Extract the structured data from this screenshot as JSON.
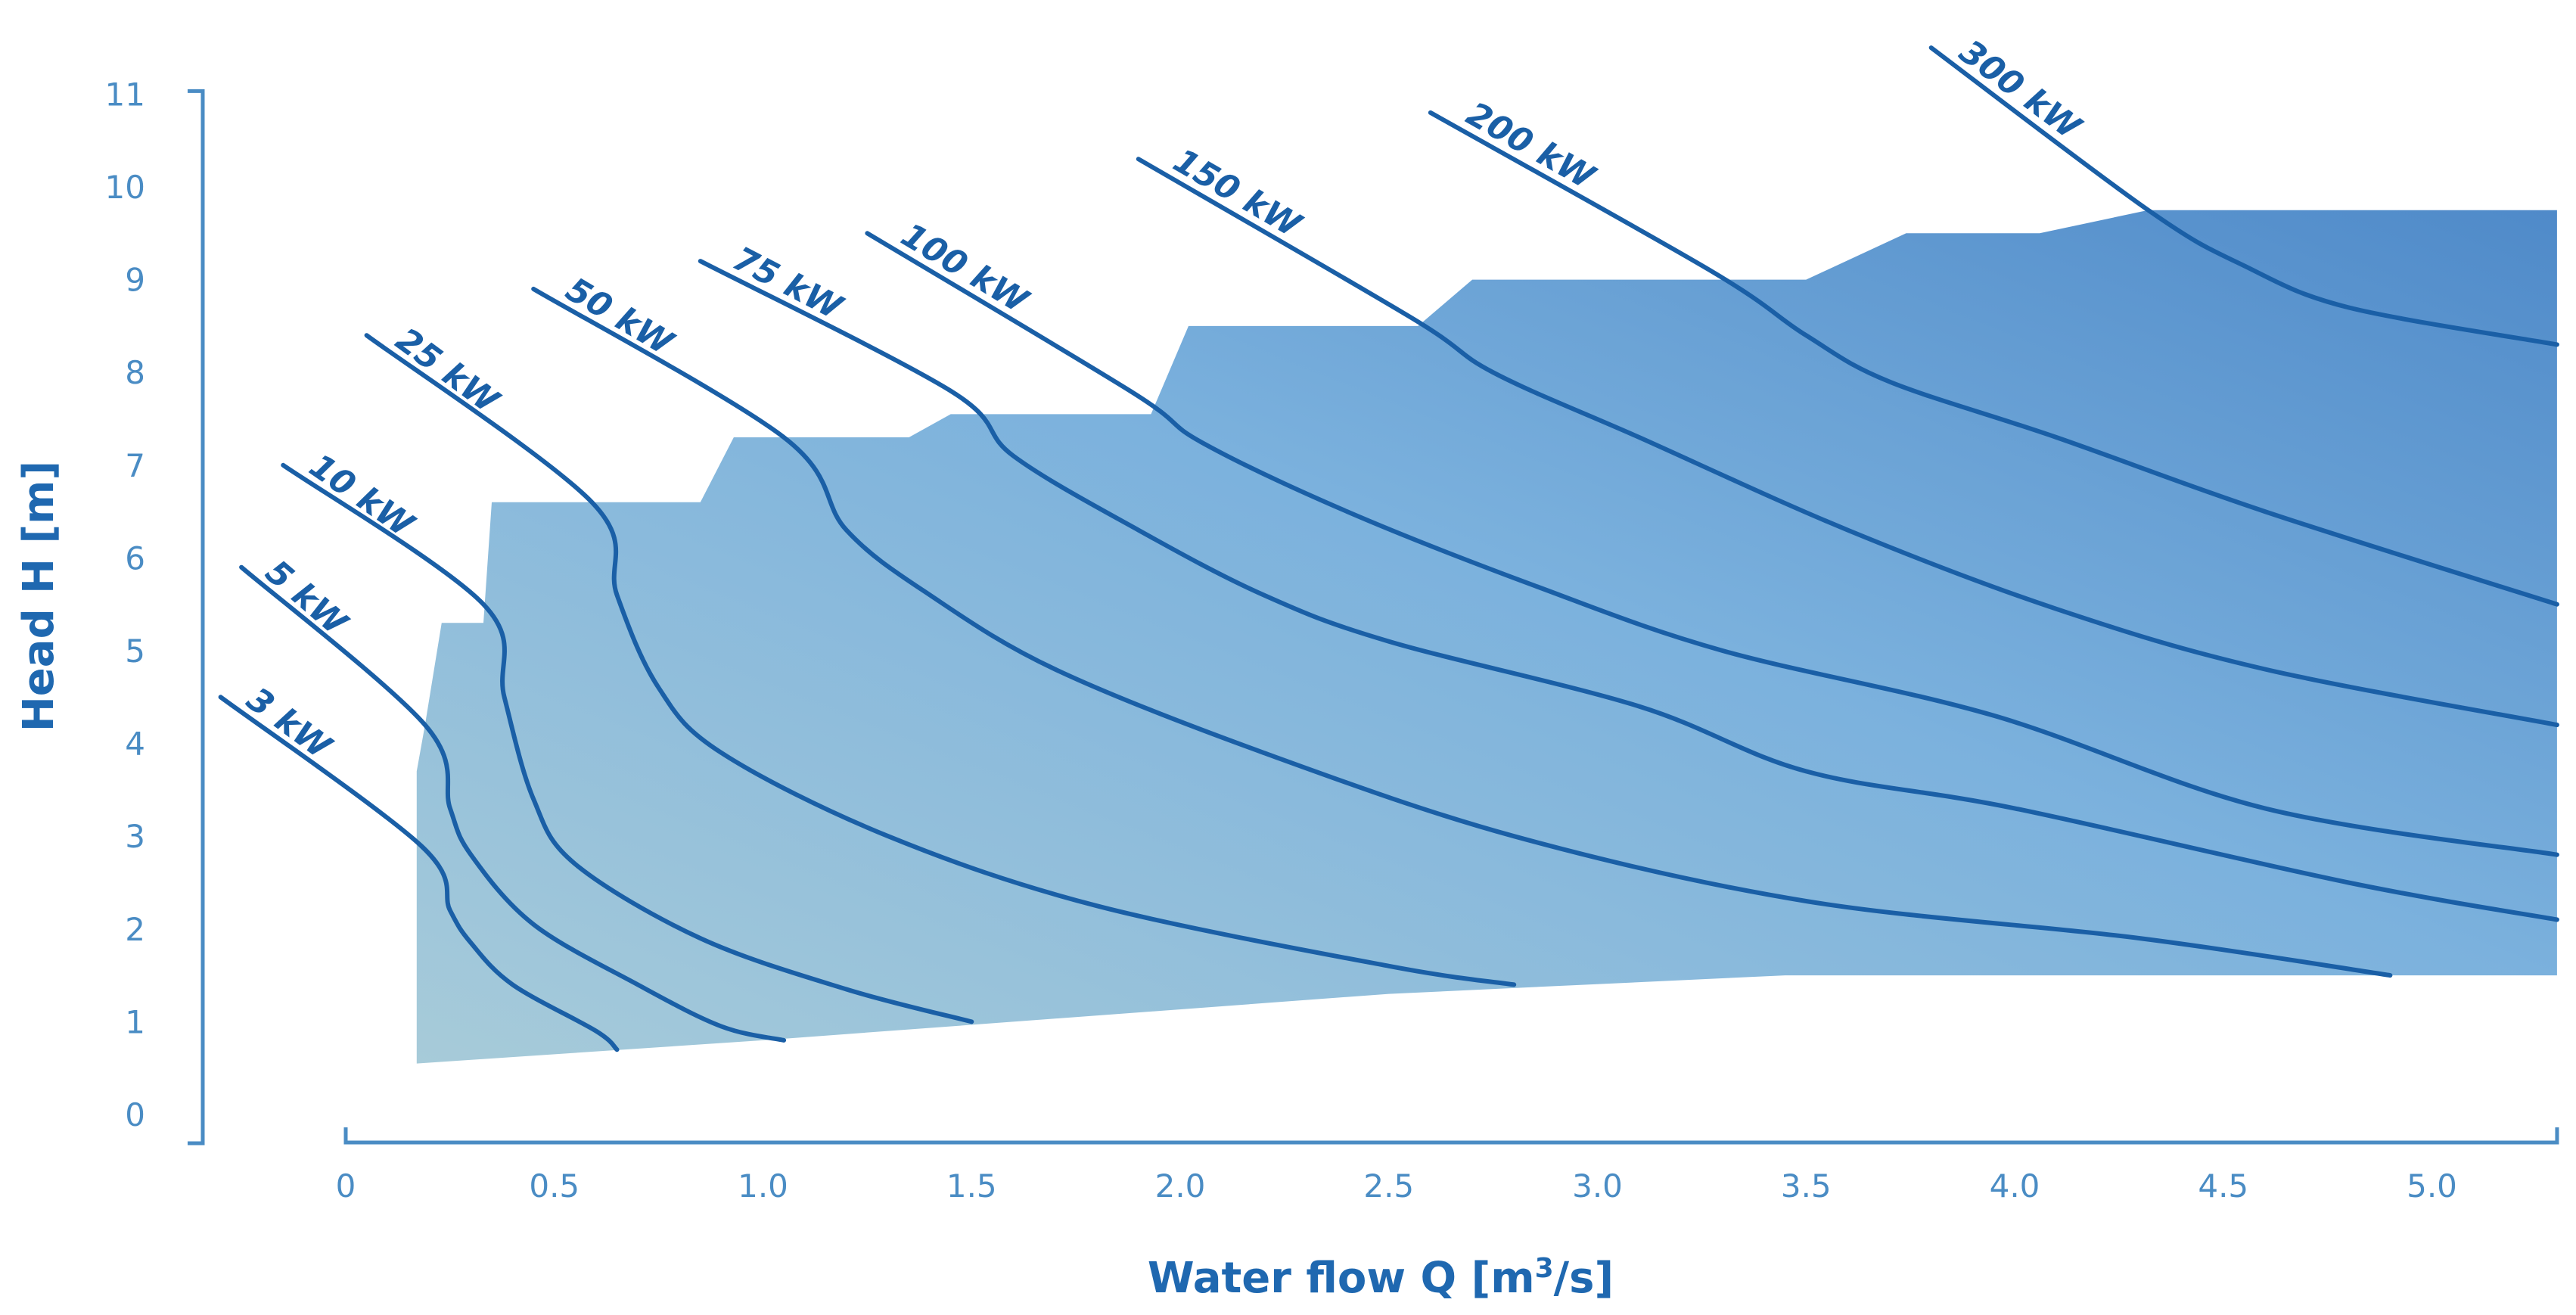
{
  "chart_data": {
    "type": "line",
    "title": "",
    "xlabel": "Water flow Q [m3/s]",
    "ylabel": "Head H [m]",
    "xlim": [
      0,
      5.3
    ],
    "ylim": [
      0,
      11
    ],
    "x_ticks": [
      {
        "value": 0,
        "label": "0"
      },
      {
        "value": 0.5,
        "label": "0.5"
      },
      {
        "value": 1.0,
        "label": "1.0"
      },
      {
        "value": 1.5,
        "label": "1.5"
      },
      {
        "value": 2.0,
        "label": "2.0"
      },
      {
        "value": 2.5,
        "label": "2.5"
      },
      {
        "value": 3.0,
        "label": "3.0"
      },
      {
        "value": 3.5,
        "label": "3.5"
      },
      {
        "value": 4.0,
        "label": "4.0"
      },
      {
        "value": 4.5,
        "label": "4.5"
      },
      {
        "value": 5.0,
        "label": "5.0"
      }
    ],
    "y_ticks": [
      {
        "value": 0,
        "label": "0"
      },
      {
        "value": 1,
        "label": "1"
      },
      {
        "value": 2,
        "label": "2"
      },
      {
        "value": 3,
        "label": "3"
      },
      {
        "value": 4,
        "label": "4"
      },
      {
        "value": 5,
        "label": "5"
      },
      {
        "value": 6,
        "label": "6"
      },
      {
        "value": 7,
        "label": "7"
      },
      {
        "value": 8,
        "label": "8"
      },
      {
        "value": 9,
        "label": "9"
      },
      {
        "value": 10,
        "label": "10"
      },
      {
        "value": 11,
        "label": "11"
      }
    ],
    "application_range": [
      [
        0.17,
        0.55
      ],
      [
        0.17,
        3.7
      ],
      [
        0.19,
        4.2
      ],
      [
        0.23,
        5.3
      ],
      [
        0.33,
        5.3
      ],
      [
        0.35,
        6.6
      ],
      [
        0.85,
        6.6
      ],
      [
        0.93,
        7.3
      ],
      [
        1.35,
        7.3
      ],
      [
        1.45,
        7.55
      ],
      [
        1.93,
        7.55
      ],
      [
        2.02,
        8.5
      ],
      [
        2.57,
        8.5
      ],
      [
        2.7,
        9.0
      ],
      [
        3.5,
        9.0
      ],
      [
        3.74,
        9.5
      ],
      [
        4.06,
        9.5
      ],
      [
        4.32,
        9.75
      ],
      [
        5.3,
        9.75
      ],
      [
        5.3,
        1.5
      ],
      [
        3.45,
        1.5
      ],
      [
        2.5,
        1.3
      ],
      [
        1.0,
        0.8
      ],
      [
        0.17,
        0.55
      ]
    ],
    "series": [
      {
        "name": "3 kW",
        "label": "3 kW",
        "points": [
          [
            -0.3,
            4.5
          ],
          [
            0.18,
            2.9
          ],
          [
            0.25,
            2.2
          ],
          [
            0.3,
            1.85
          ],
          [
            0.4,
            1.4
          ],
          [
            0.6,
            0.9
          ],
          [
            0.65,
            0.7
          ]
        ]
      },
      {
        "name": "5 kW",
        "label": "5 kW",
        "points": [
          [
            -0.25,
            5.9
          ],
          [
            0.19,
            4.2
          ],
          [
            0.25,
            3.3
          ],
          [
            0.3,
            2.8
          ],
          [
            0.45,
            2.05
          ],
          [
            0.7,
            1.4
          ],
          [
            0.9,
            0.95
          ],
          [
            1.05,
            0.8
          ]
        ]
      },
      {
        "name": "10 kW",
        "label": "10 kW",
        "points": [
          [
            -0.15,
            7.0
          ],
          [
            0.33,
            5.5
          ],
          [
            0.38,
            4.5
          ],
          [
            0.45,
            3.4
          ],
          [
            0.55,
            2.7
          ],
          [
            0.85,
            1.9
          ],
          [
            1.2,
            1.35
          ],
          [
            1.5,
            1.0
          ]
        ]
      },
      {
        "name": "25 kW",
        "label": "25 kW",
        "points": [
          [
            0.05,
            8.4
          ],
          [
            0.59,
            6.6
          ],
          [
            0.65,
            5.6
          ],
          [
            0.75,
            4.6
          ],
          [
            0.9,
            3.9
          ],
          [
            1.3,
            3.0
          ],
          [
            1.8,
            2.25
          ],
          [
            2.5,
            1.6
          ],
          [
            2.8,
            1.4
          ]
        ]
      },
      {
        "name": "50 kW",
        "label": "50 kW",
        "points": [
          [
            0.45,
            8.9
          ],
          [
            1.05,
            7.3
          ],
          [
            1.2,
            6.3
          ],
          [
            1.4,
            5.6
          ],
          [
            1.7,
            4.8
          ],
          [
            2.2,
            3.9
          ],
          [
            2.8,
            3.0
          ],
          [
            3.5,
            2.3
          ],
          [
            4.3,
            1.9
          ],
          [
            4.9,
            1.5
          ]
        ]
      },
      {
        "name": "75 kW",
        "label": "75 kW",
        "points": [
          [
            0.85,
            9.2
          ],
          [
            1.45,
            7.8
          ],
          [
            1.6,
            7.1
          ],
          [
            1.9,
            6.3
          ],
          [
            2.2,
            5.6
          ],
          [
            2.5,
            5.1
          ],
          [
            3.1,
            4.4
          ],
          [
            3.5,
            3.7
          ],
          [
            4.0,
            3.3
          ],
          [
            4.8,
            2.5
          ],
          [
            5.3,
            2.1
          ]
        ]
      },
      {
        "name": "100 kW",
        "label": "100 kW",
        "points": [
          [
            1.25,
            9.5
          ],
          [
            1.88,
            7.8
          ],
          [
            2.05,
            7.25
          ],
          [
            2.4,
            6.5
          ],
          [
            2.85,
            5.7
          ],
          [
            3.3,
            5.0
          ],
          [
            3.95,
            4.3
          ],
          [
            4.6,
            3.3
          ],
          [
            5.3,
            2.8
          ]
        ]
      },
      {
        "name": "150 kW",
        "label": "150 kW",
        "points": [
          [
            1.9,
            10.3
          ],
          [
            2.55,
            8.6
          ],
          [
            2.75,
            8.0
          ],
          [
            3.1,
            7.3
          ],
          [
            3.6,
            6.3
          ],
          [
            4.1,
            5.45
          ],
          [
            4.6,
            4.8
          ],
          [
            5.3,
            4.2
          ]
        ]
      },
      {
        "name": "200 kW",
        "label": "200 kW",
        "points": [
          [
            2.6,
            10.8
          ],
          [
            3.27,
            9.1
          ],
          [
            3.5,
            8.4
          ],
          [
            3.7,
            7.9
          ],
          [
            4.1,
            7.3
          ],
          [
            4.6,
            6.5
          ],
          [
            5.3,
            5.5
          ]
        ]
      },
      {
        "name": "300 kW",
        "label": "300 kW",
        "points": [
          [
            3.8,
            11.5
          ],
          [
            4.32,
            9.75
          ],
          [
            4.55,
            9.15
          ],
          [
            4.8,
            8.7
          ],
          [
            5.3,
            8.3
          ]
        ]
      }
    ]
  }
}
